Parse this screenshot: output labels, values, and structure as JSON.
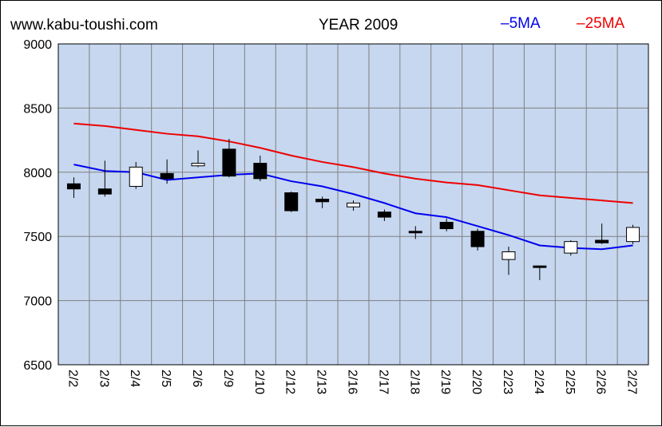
{
  "header": {
    "site": "www.kabu-toushi.com",
    "title": "YEAR 2009"
  },
  "colors": {
    "plot_bg": "#c6d7ef",
    "grid": "#808080",
    "ma5": "#0000ee",
    "ma25": "#ee0000",
    "candle_up": "#ffffff",
    "candle_down": "#000000"
  },
  "chart_data": {
    "type": "candlestick",
    "title": "YEAR 2009",
    "ylim": [
      6500,
      9000
    ],
    "yticks": [
      9000,
      8500,
      8000,
      7500,
      7000,
      6500
    ],
    "grid": true,
    "legend_position": "top-right",
    "categories": [
      "2/2",
      "2/3",
      "2/4",
      "2/5",
      "2/6",
      "2/9",
      "2/10",
      "2/12",
      "2/13",
      "2/16",
      "2/17",
      "2/18",
      "2/19",
      "2/20",
      "2/23",
      "2/24",
      "2/25",
      "2/26",
      "2/27"
    ],
    "candles": [
      {
        "open": 7910,
        "high": 7960,
        "low": 7800,
        "close": 7870
      },
      {
        "open": 7870,
        "high": 8090,
        "low": 7810,
        "close": 7830
      },
      {
        "open": 7890,
        "high": 8080,
        "low": 7870,
        "close": 8040
      },
      {
        "open": 7990,
        "high": 8100,
        "low": 7910,
        "close": 7950
      },
      {
        "open": 8050,
        "high": 8170,
        "low": 8040,
        "close": 8070
      },
      {
        "open": 8180,
        "high": 8260,
        "low": 7960,
        "close": 7970
      },
      {
        "open": 8070,
        "high": 8130,
        "low": 7930,
        "close": 7950
      },
      {
        "open": 7840,
        "high": 7850,
        "low": 7690,
        "close": 7700
      },
      {
        "open": 7790,
        "high": 7810,
        "low": 7720,
        "close": 7770
      },
      {
        "open": 7730,
        "high": 7780,
        "low": 7700,
        "close": 7760
      },
      {
        "open": 7690,
        "high": 7710,
        "low": 7620,
        "close": 7650
      },
      {
        "open": 7540,
        "high": 7580,
        "low": 7480,
        "close": 7530
      },
      {
        "open": 7610,
        "high": 7640,
        "low": 7540,
        "close": 7560
      },
      {
        "open": 7540,
        "high": 7560,
        "low": 7390,
        "close": 7420
      },
      {
        "open": 7320,
        "high": 7420,
        "low": 7200,
        "close": 7380
      },
      {
        "open": 7270,
        "high": 7270,
        "low": 7160,
        "close": 7260
      },
      {
        "open": 7370,
        "high": 7470,
        "low": 7350,
        "close": 7460
      },
      {
        "open": 7470,
        "high": 7600,
        "low": 7440,
        "close": 7450
      },
      {
        "open": 7460,
        "high": 7590,
        "low": 7440,
        "close": 7570
      }
    ],
    "series": [
      {
        "name": "5MA",
        "color": "#0000ee",
        "values": [
          8060,
          8010,
          8000,
          7940,
          7960,
          7980,
          7990,
          7930,
          7890,
          7830,
          7760,
          7680,
          7650,
          7580,
          7510,
          7430,
          7410,
          7400,
          7430
        ]
      },
      {
        "name": "25MA",
        "color": "#ee0000",
        "values": [
          8380,
          8360,
          8330,
          8300,
          8280,
          8240,
          8190,
          8130,
          8080,
          8040,
          7990,
          7950,
          7920,
          7900,
          7860,
          7820,
          7800,
          7780,
          7760
        ]
      }
    ]
  }
}
